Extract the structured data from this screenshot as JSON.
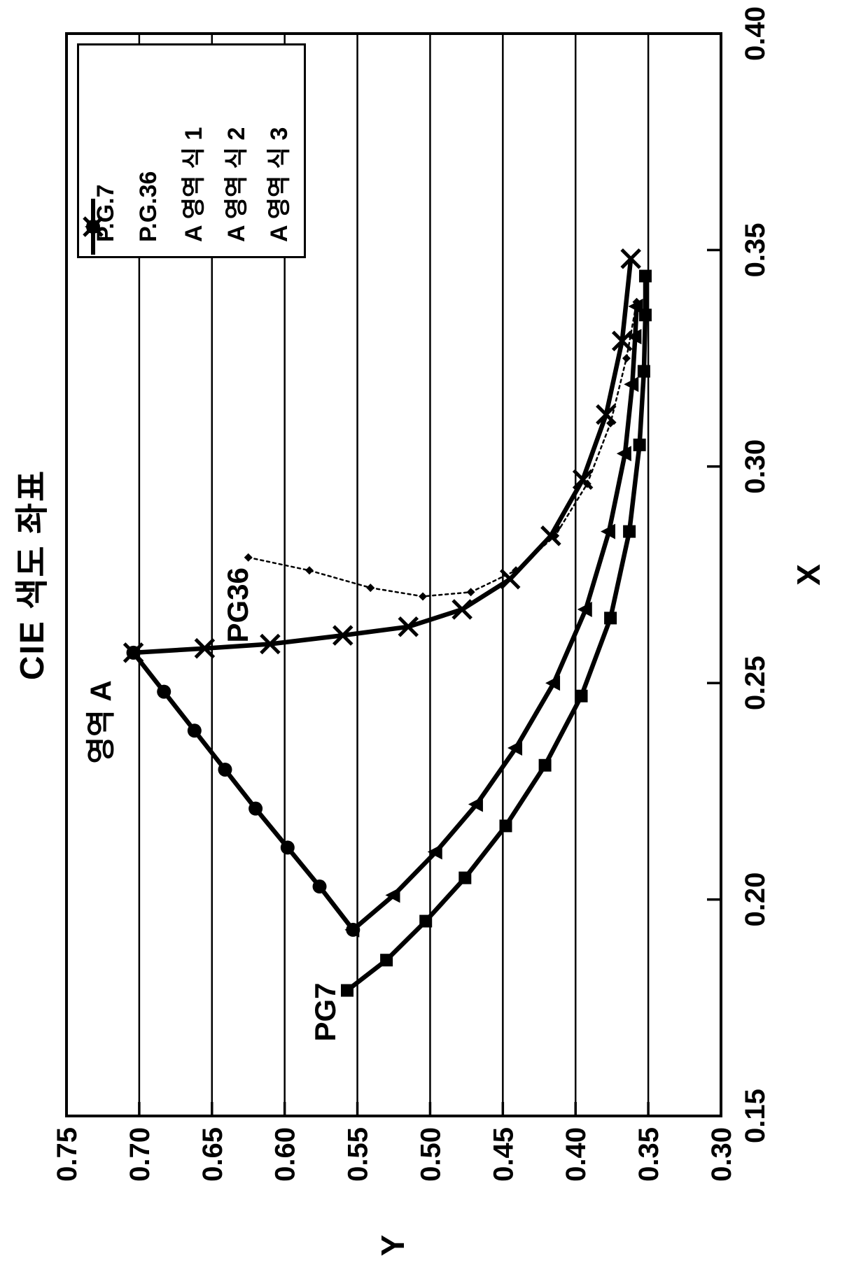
{
  "figure": {
    "title": "CIE 색도 좌표",
    "x_axis_title": "X",
    "y_axis_title": "Y"
  },
  "legend": {
    "items": [
      {
        "label": "P.G.7",
        "marker": "square",
        "line": "solid"
      },
      {
        "label": "P.G.36",
        "marker": "diamond",
        "line": "dotted"
      },
      {
        "label": "A 영역 식 1",
        "marker": "circle",
        "line": "solid"
      },
      {
        "label": "A 영역 식 2",
        "marker": "x",
        "line": "solid"
      },
      {
        "label": "A 영역 식 3",
        "marker": "triangle",
        "line": "solid"
      }
    ]
  },
  "chart_data": {
    "type": "line",
    "title": "CIE 색도 좌표",
    "xlabel": "X",
    "ylabel": "Y",
    "xlim": [
      0.15,
      0.4
    ],
    "ylim": [
      0.3,
      0.75
    ],
    "x_ticks": [
      0.15,
      0.2,
      0.25,
      0.3,
      0.35,
      0.4
    ],
    "x_tick_labels": [
      "0.15",
      "0.20",
      "0.25",
      "0.30",
      "0.35",
      "0.40"
    ],
    "y_ticks": [
      0.3,
      0.35,
      0.4,
      0.45,
      0.5,
      0.55,
      0.6,
      0.65,
      0.7,
      0.75
    ],
    "y_tick_labels": [
      "0.30",
      "0.35",
      "0.40",
      "0.45",
      "0.50",
      "0.55",
      "0.60",
      "0.65",
      "0.70",
      "0.75"
    ],
    "grid": "horizontal-only",
    "legend_position": "top-right",
    "orientation": "page rotated 90deg counterclockwise",
    "colors": {
      "ink": "#000000",
      "background": "#ffffff"
    },
    "series": [
      {
        "name": "P.G.7",
        "marker": "square",
        "line": "solid",
        "points": [
          [
            0.179,
            0.557
          ],
          [
            0.186,
            0.53
          ],
          [
            0.195,
            0.503
          ],
          [
            0.205,
            0.476
          ],
          [
            0.217,
            0.448
          ],
          [
            0.231,
            0.421
          ],
          [
            0.247,
            0.396
          ],
          [
            0.265,
            0.376
          ],
          [
            0.285,
            0.363
          ],
          [
            0.305,
            0.356
          ],
          [
            0.322,
            0.353
          ],
          [
            0.335,
            0.352
          ],
          [
            0.344,
            0.352
          ]
        ]
      },
      {
        "name": "P.G.36",
        "marker": "diamond",
        "line": "dotted",
        "points": [
          [
            0.279,
            0.625
          ],
          [
            0.276,
            0.583
          ],
          [
            0.272,
            0.541
          ],
          [
            0.27,
            0.505
          ],
          [
            0.271,
            0.472
          ],
          [
            0.276,
            0.441
          ],
          [
            0.284,
            0.414
          ],
          [
            0.296,
            0.392
          ],
          [
            0.31,
            0.376
          ],
          [
            0.325,
            0.365
          ],
          [
            0.338,
            0.358
          ]
        ]
      },
      {
        "name": "A 영역 식 1",
        "marker": "circle",
        "line": "solid",
        "points": [
          [
            0.257,
            0.704
          ],
          [
            0.248,
            0.683
          ],
          [
            0.239,
            0.662
          ],
          [
            0.23,
            0.641
          ],
          [
            0.221,
            0.62
          ],
          [
            0.212,
            0.598
          ],
          [
            0.203,
            0.576
          ],
          [
            0.193,
            0.553
          ]
        ]
      },
      {
        "name": "A 영역 식 2",
        "marker": "x",
        "line": "solid",
        "points": [
          [
            0.257,
            0.704
          ],
          [
            0.258,
            0.655
          ],
          [
            0.259,
            0.61
          ],
          [
            0.261,
            0.56
          ],
          [
            0.263,
            0.515
          ],
          [
            0.267,
            0.478
          ],
          [
            0.274,
            0.445
          ],
          [
            0.284,
            0.417
          ],
          [
            0.297,
            0.395
          ],
          [
            0.312,
            0.379
          ],
          [
            0.329,
            0.368
          ],
          [
            0.348,
            0.362
          ]
        ]
      },
      {
        "name": "A 영역 식 3",
        "marker": "triangle",
        "line": "solid",
        "points": [
          [
            0.193,
            0.553
          ],
          [
            0.201,
            0.525
          ],
          [
            0.211,
            0.496
          ],
          [
            0.222,
            0.468
          ],
          [
            0.235,
            0.441
          ],
          [
            0.25,
            0.415
          ],
          [
            0.267,
            0.393
          ],
          [
            0.285,
            0.377
          ],
          [
            0.303,
            0.366
          ],
          [
            0.319,
            0.361
          ],
          [
            0.33,
            0.359
          ],
          [
            0.337,
            0.358
          ]
        ]
      }
    ],
    "annotations": [
      {
        "text": "영역 A",
        "x": 0.241,
        "y": 0.728
      },
      {
        "text": "PG36",
        "x": 0.268,
        "y": 0.632
      },
      {
        "text": "PG7",
        "x": 0.174,
        "y": 0.572
      }
    ]
  }
}
